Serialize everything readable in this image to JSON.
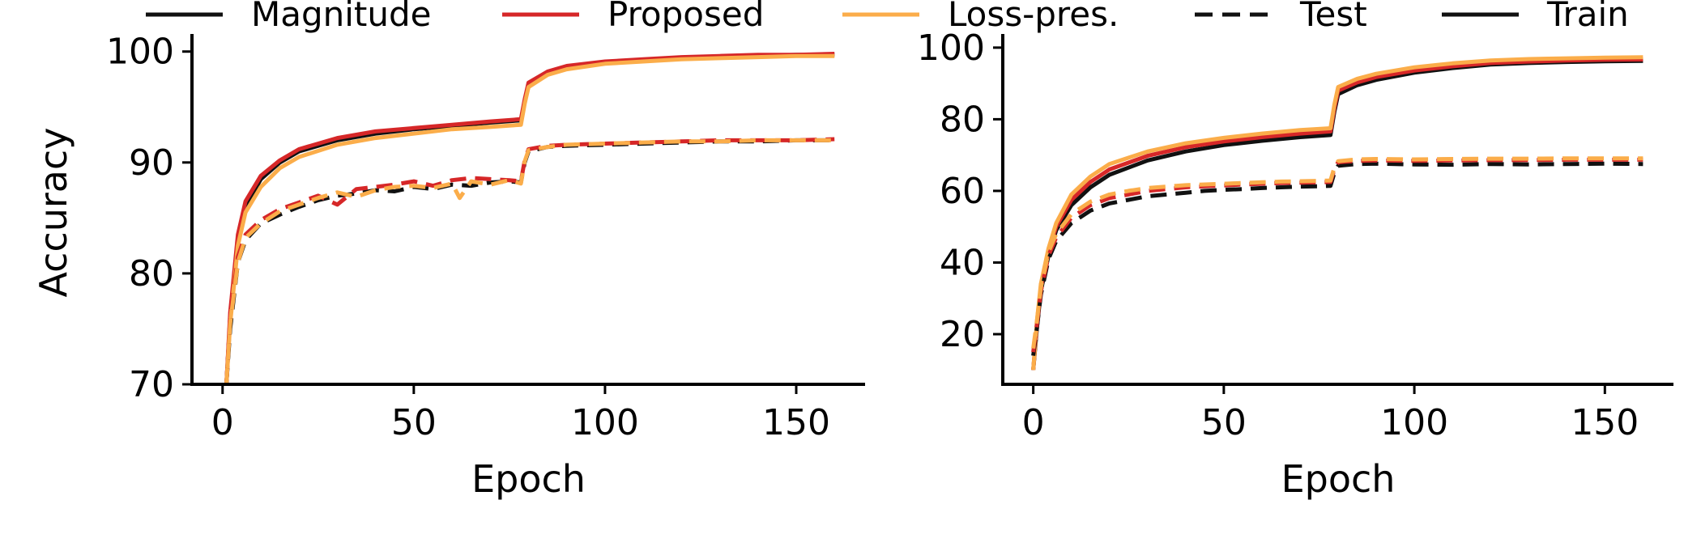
{
  "legend": [
    {
      "label": "Magnitude",
      "color": "#111111",
      "dash": "solid"
    },
    {
      "label": "Proposed",
      "color": "#d62728",
      "dash": "solid"
    },
    {
      "label": "Loss-pres.",
      "color": "#fbad4a",
      "dash": "solid"
    },
    {
      "label": "Test",
      "color": "#111111",
      "dash": "dashed"
    },
    {
      "label": "Train",
      "color": "#111111",
      "dash": "solid"
    }
  ],
  "chart_data": [
    {
      "type": "line",
      "xlabel": "Epoch",
      "ylabel": "Accuracy",
      "xlim": [
        -8,
        168
      ],
      "ylim": [
        70,
        101
      ],
      "xticks": [
        0,
        50,
        100,
        150
      ],
      "yticks": [
        70,
        80,
        90,
        100
      ],
      "grid": false,
      "series": [
        {
          "name": "Magnitude",
          "style": "Train",
          "color": "#111111",
          "dash": "solid",
          "x": [
            1,
            2,
            4,
            6,
            10,
            15,
            20,
            30,
            40,
            50,
            60,
            70,
            78,
            79,
            80,
            85,
            90,
            100,
            110,
            120,
            130,
            140,
            150,
            160
          ],
          "values": [
            70,
            76,
            83,
            86,
            88.5,
            90,
            91,
            92,
            92.6,
            93,
            93.3,
            93.6,
            93.8,
            95.5,
            97,
            98,
            98.6,
            99,
            99.2,
            99.4,
            99.5,
            99.6,
            99.7,
            99.7
          ]
        },
        {
          "name": "Proposed",
          "style": "Train",
          "color": "#d62728",
          "dash": "solid",
          "x": [
            1,
            2,
            4,
            6,
            10,
            15,
            20,
            30,
            40,
            50,
            60,
            70,
            78,
            79,
            80,
            85,
            90,
            100,
            110,
            120,
            130,
            140,
            150,
            160
          ],
          "values": [
            70,
            76.5,
            83.5,
            86.5,
            88.8,
            90.2,
            91.2,
            92.2,
            92.8,
            93.1,
            93.4,
            93.7,
            93.9,
            95.7,
            97.2,
            98.2,
            98.7,
            99.1,
            99.3,
            99.5,
            99.6,
            99.7,
            99.7,
            99.8
          ]
        },
        {
          "name": "Loss-pres.",
          "style": "Train",
          "color": "#fbad4a",
          "dash": "solid",
          "x": [
            1,
            2,
            4,
            6,
            10,
            15,
            20,
            30,
            40,
            50,
            60,
            70,
            78,
            79,
            80,
            85,
            90,
            100,
            110,
            120,
            130,
            140,
            150,
            160
          ],
          "values": [
            70,
            75.5,
            82.5,
            85.5,
            87.8,
            89.5,
            90.5,
            91.6,
            92.2,
            92.6,
            93,
            93.2,
            93.4,
            95.3,
            96.8,
            97.9,
            98.4,
            98.9,
            99.1,
            99.3,
            99.4,
            99.5,
            99.6,
            99.6
          ]
        },
        {
          "name": "Magnitude",
          "style": "Test",
          "color": "#111111",
          "dash": "dashed",
          "x": [
            1,
            2,
            4,
            6,
            10,
            15,
            20,
            25,
            30,
            35,
            40,
            45,
            50,
            55,
            60,
            65,
            70,
            75,
            78,
            79,
            80,
            85,
            90,
            100,
            110,
            120,
            130,
            140,
            150,
            160
          ],
          "values": [
            70,
            75,
            81,
            83,
            84.5,
            85.3,
            86,
            86.6,
            87,
            87.2,
            87.5,
            87.4,
            87.8,
            87.6,
            88,
            87.9,
            88.2,
            88.3,
            88.2,
            90,
            91,
            91.4,
            91.5,
            91.6,
            91.7,
            91.8,
            91.9,
            91.9,
            92,
            92
          ]
        },
        {
          "name": "Proposed",
          "style": "Test",
          "color": "#d62728",
          "dash": "dashed",
          "x": [
            1,
            2,
            4,
            6,
            10,
            15,
            20,
            25,
            30,
            35,
            40,
            45,
            50,
            55,
            60,
            65,
            70,
            75,
            78,
            79,
            80,
            85,
            90,
            100,
            110,
            120,
            130,
            140,
            150,
            160
          ],
          "values": [
            70,
            76,
            81.5,
            83.5,
            84.8,
            85.8,
            86.4,
            87,
            86.2,
            87.6,
            87.8,
            88,
            88.3,
            87.9,
            88.4,
            88.6,
            88.5,
            88.4,
            88.3,
            90.2,
            91.2,
            91.5,
            91.6,
            91.7,
            91.8,
            91.9,
            92,
            92,
            92,
            92.1
          ]
        },
        {
          "name": "Loss-pres.",
          "style": "Test",
          "color": "#fbad4a",
          "dash": "dashed",
          "x": [
            1,
            2,
            4,
            6,
            10,
            15,
            20,
            25,
            30,
            35,
            40,
            45,
            50,
            55,
            60,
            62,
            65,
            70,
            75,
            78,
            79,
            80,
            85,
            90,
            100,
            110,
            120,
            130,
            140,
            150,
            160
          ],
          "values": [
            70,
            75.5,
            81,
            83.2,
            84.5,
            85.6,
            86.2,
            86.8,
            87.3,
            86.9,
            87.5,
            87.8,
            87.9,
            87.7,
            88.1,
            86.8,
            88.3,
            88,
            88.4,
            88.1,
            90.1,
            91.1,
            91.4,
            91.6,
            91.7,
            91.8,
            91.9,
            91.9,
            92,
            92,
            92
          ]
        }
      ]
    },
    {
      "type": "line",
      "xlabel": "Epoch",
      "ylabel": "",
      "xlim": [
        -8,
        168
      ],
      "ylim": [
        6,
        102
      ],
      "xticks": [
        0,
        50,
        100,
        150
      ],
      "yticks": [
        20,
        40,
        60,
        80,
        100
      ],
      "grid": false,
      "series": [
        {
          "name": "Magnitude",
          "style": "Train",
          "color": "#111111",
          "dash": "solid",
          "x": [
            0,
            1,
            2,
            4,
            6,
            10,
            15,
            20,
            30,
            40,
            50,
            60,
            70,
            78,
            79,
            80,
            85,
            90,
            100,
            110,
            120,
            130,
            140,
            150,
            160
          ],
          "values": [
            10,
            22,
            32,
            42,
            49,
            56,
            61,
            64.5,
            68.5,
            71,
            72.8,
            74,
            75,
            75.6,
            82,
            87,
            89.5,
            91,
            93,
            94.3,
            95.3,
            95.7,
            96,
            96.2,
            96.3
          ]
        },
        {
          "name": "Proposed",
          "style": "Train",
          "color": "#d62728",
          "dash": "solid",
          "x": [
            0,
            1,
            2,
            4,
            6,
            10,
            15,
            20,
            30,
            40,
            50,
            60,
            70,
            78,
            79,
            80,
            85,
            90,
            100,
            110,
            120,
            130,
            140,
            150,
            160
          ],
          "values": [
            10,
            23,
            33,
            43,
            50,
            57.5,
            62.5,
            66,
            69.8,
            72.2,
            73.8,
            75,
            76,
            76.6,
            83,
            88,
            90.3,
            91.8,
            93.6,
            94.8,
            95.7,
            96.1,
            96.4,
            96.6,
            96.7
          ]
        },
        {
          "name": "Loss-pres.",
          "style": "Train",
          "color": "#fbad4a",
          "dash": "solid",
          "x": [
            0,
            1,
            2,
            4,
            6,
            10,
            15,
            20,
            30,
            40,
            50,
            60,
            70,
            78,
            79,
            80,
            85,
            90,
            100,
            110,
            120,
            130,
            140,
            150,
            160
          ],
          "values": [
            10,
            24,
            34,
            44,
            51,
            59,
            64,
            67.5,
            71,
            73.3,
            74.8,
            76,
            77,
            77.5,
            84,
            89,
            91.3,
            92.7,
            94.5,
            95.6,
            96.4,
            96.8,
            97,
            97.2,
            97.3
          ]
        },
        {
          "name": "Magnitude",
          "style": "Test",
          "color": "#111111",
          "dash": "dashed",
          "x": [
            0,
            1,
            2,
            4,
            6,
            10,
            15,
            20,
            25,
            30,
            35,
            40,
            45,
            50,
            55,
            60,
            65,
            70,
            75,
            78,
            79,
            80,
            85,
            90,
            100,
            110,
            120,
            130,
            140,
            150,
            160
          ],
          "values": [
            14,
            22,
            31,
            41,
            46,
            51,
            54.5,
            56.5,
            57.5,
            58.5,
            59,
            59.5,
            60,
            60.3,
            60.5,
            60.8,
            61,
            61.2,
            61.3,
            61.4,
            65,
            67,
            67.5,
            67.6,
            67.4,
            67.3,
            67.5,
            67.4,
            67.5,
            67.6,
            67.5
          ]
        },
        {
          "name": "Proposed",
          "style": "Test",
          "color": "#d62728",
          "dash": "dashed",
          "x": [
            0,
            1,
            2,
            4,
            6,
            10,
            15,
            20,
            25,
            30,
            35,
            40,
            45,
            50,
            55,
            60,
            65,
            70,
            75,
            78,
            79,
            80,
            85,
            90,
            100,
            110,
            120,
            130,
            140,
            150,
            160
          ],
          "values": [
            15,
            23,
            32,
            42,
            47,
            52.5,
            56,
            58,
            59,
            60,
            60.5,
            61,
            61.3,
            61.5,
            61.8,
            62,
            62.2,
            62.3,
            62.4,
            62.5,
            66,
            68,
            68.4,
            68.5,
            68.4,
            68.5,
            68.6,
            68.6,
            68.7,
            68.7,
            68.7
          ]
        },
        {
          "name": "Loss-pres.",
          "style": "Test",
          "color": "#fbad4a",
          "dash": "dashed",
          "x": [
            0,
            1,
            2,
            4,
            6,
            10,
            15,
            20,
            25,
            30,
            35,
            40,
            45,
            50,
            55,
            60,
            65,
            70,
            75,
            78,
            79,
            80,
            85,
            90,
            100,
            110,
            120,
            130,
            140,
            150,
            160
          ],
          "values": [
            16,
            24,
            33,
            43,
            48,
            53.5,
            57,
            59,
            60,
            60.8,
            61.2,
            61.6,
            61.8,
            62,
            62.2,
            62.4,
            62.6,
            62.7,
            62.8,
            62.9,
            66.5,
            68.3,
            68.8,
            68.9,
            68.8,
            68.9,
            69,
            69,
            69.1,
            69.1,
            69.1
          ]
        }
      ]
    }
  ]
}
